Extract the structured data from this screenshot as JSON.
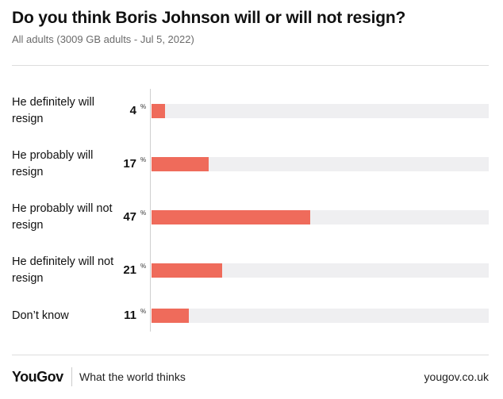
{
  "header": {
    "title": "Do you think Boris Johnson will or will not resign?",
    "subtitle": "All adults (3009 GB adults - Jul 5, 2022)"
  },
  "chart_data": {
    "type": "bar",
    "orientation": "horizontal",
    "unit": "%",
    "categories": [
      "He definitely will resign",
      "He probably will resign",
      "He probably will not resign",
      "He definitely will not resign",
      "Don’t know"
    ],
    "values": [
      4,
      17,
      47,
      21,
      11
    ],
    "xlim": [
      0,
      100
    ],
    "grid": false,
    "colors": {
      "bar": "#ef6b5b",
      "track": "#efeff1"
    }
  },
  "footer": {
    "brand": "YouGov",
    "tagline": "What the world thinks",
    "url": "yougov.co.uk"
  }
}
